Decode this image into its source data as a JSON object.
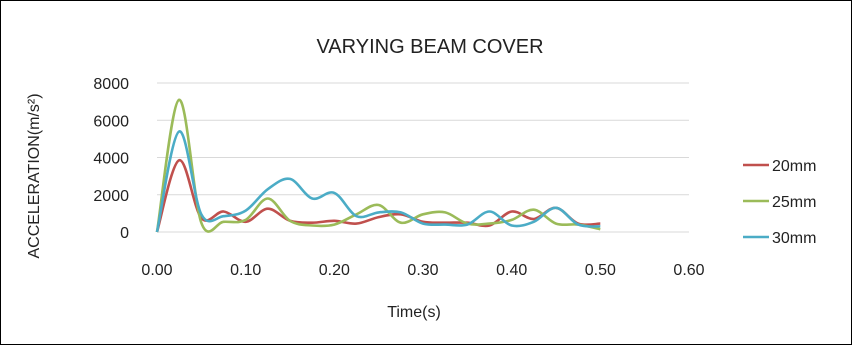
{
  "chart_data": {
    "type": "line",
    "title": "VARYING BEAM COVER",
    "xlabel": "Time(s)",
    "ylabel": "ACCELERATION(m/s²)",
    "xlim": [
      0,
      0.6
    ],
    "ylim": [
      0,
      8000
    ],
    "xticks": [
      "0.00",
      "0.10",
      "0.20",
      "0.30",
      "0.40",
      "0.50",
      "0.60"
    ],
    "yticks": [
      "0",
      "2000",
      "4000",
      "6000",
      "8000"
    ],
    "grid": "horizontal",
    "legend_position": "right",
    "series": [
      {
        "name": "20mm",
        "color": "#c0504d",
        "points": [
          [
            0,
            0
          ],
          [
            0.025,
            3850
          ],
          [
            0.05,
            750
          ],
          [
            0.075,
            1100
          ],
          [
            0.1,
            550
          ],
          [
            0.125,
            1250
          ],
          [
            0.15,
            600
          ],
          [
            0.175,
            500
          ],
          [
            0.2,
            600
          ],
          [
            0.225,
            450
          ],
          [
            0.25,
            800
          ],
          [
            0.275,
            950
          ],
          [
            0.3,
            550
          ],
          [
            0.325,
            500
          ],
          [
            0.35,
            500
          ],
          [
            0.375,
            350
          ],
          [
            0.4,
            1100
          ],
          [
            0.425,
            700
          ],
          [
            0.45,
            1300
          ],
          [
            0.475,
            450
          ],
          [
            0.5,
            450
          ]
        ]
      },
      {
        "name": "25mm",
        "color": "#9bbb59",
        "points": [
          [
            0,
            0
          ],
          [
            0.025,
            7100
          ],
          [
            0.05,
            500
          ],
          [
            0.075,
            550
          ],
          [
            0.1,
            650
          ],
          [
            0.125,
            1800
          ],
          [
            0.15,
            600
          ],
          [
            0.175,
            350
          ],
          [
            0.2,
            400
          ],
          [
            0.225,
            950
          ],
          [
            0.25,
            1450
          ],
          [
            0.275,
            500
          ],
          [
            0.3,
            950
          ],
          [
            0.325,
            1050
          ],
          [
            0.35,
            450
          ],
          [
            0.375,
            450
          ],
          [
            0.4,
            650
          ],
          [
            0.425,
            1200
          ],
          [
            0.45,
            450
          ],
          [
            0.475,
            400
          ],
          [
            0.5,
            150
          ]
        ]
      },
      {
        "name": "30mm",
        "color": "#4bacc6",
        "points": [
          [
            0,
            0
          ],
          [
            0.025,
            5400
          ],
          [
            0.05,
            950
          ],
          [
            0.075,
            850
          ],
          [
            0.1,
            1150
          ],
          [
            0.125,
            2300
          ],
          [
            0.15,
            2850
          ],
          [
            0.175,
            1800
          ],
          [
            0.2,
            2100
          ],
          [
            0.225,
            850
          ],
          [
            0.25,
            1050
          ],
          [
            0.275,
            1050
          ],
          [
            0.3,
            450
          ],
          [
            0.325,
            400
          ],
          [
            0.35,
            400
          ],
          [
            0.375,
            1100
          ],
          [
            0.4,
            350
          ],
          [
            0.425,
            550
          ],
          [
            0.45,
            1300
          ],
          [
            0.475,
            400
          ],
          [
            0.5,
            300
          ]
        ]
      }
    ]
  }
}
